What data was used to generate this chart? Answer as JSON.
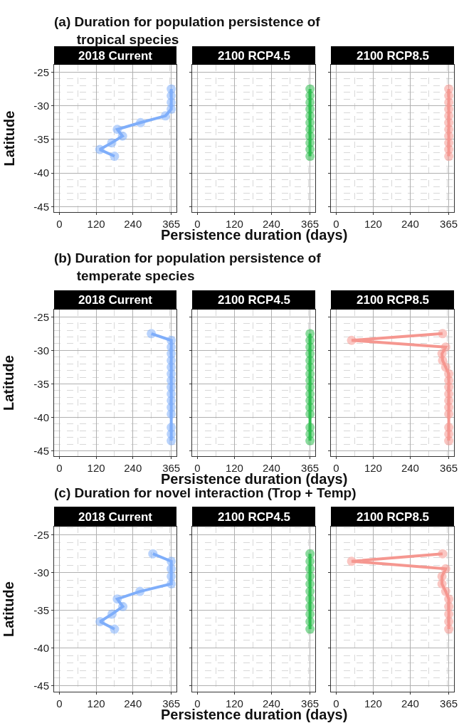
{
  "chart_data": [
    {
      "type": "line",
      "title": "(a) Duration for population persistence of tropical species",
      "subtitle": "2018 Current",
      "ylabel": "Latitude",
      "xlim": [
        -17,
        382
      ],
      "ylim": [
        -45.8,
        -23.9
      ],
      "xticks": [
        0,
        120,
        240,
        365
      ],
      "yticks": [
        -25,
        -30,
        -35,
        -40,
        -45
      ],
      "grid": true,
      "marker": "circle",
      "series": [
        {
          "color": "#7faefa",
          "x": [
            365,
            365,
            365,
            365,
            346,
            265,
            189,
            206,
            171,
            132,
            180
          ],
          "values": [
            -27.5,
            -28.5,
            -29.5,
            -30.5,
            -31.5,
            -32.5,
            -33.5,
            -34.5,
            -35.5,
            -36.5,
            -37.5
          ]
        }
      ]
    },
    {
      "type": "line",
      "subtitle": "2100 RCP4.5",
      "xlabel": "Persistence duration (days)",
      "xlim": [
        -17,
        382
      ],
      "ylim": [
        -45.8,
        -23.9
      ],
      "xticks": [
        0,
        120,
        240,
        365
      ],
      "yticks": [
        -25,
        -30,
        -35,
        -40,
        -45
      ],
      "tick_labels": "x",
      "grid": true,
      "marker": "circle",
      "series": [
        {
          "color": "#2fbe50",
          "x": [
            365,
            365,
            365,
            365,
            365,
            365,
            365,
            365,
            365,
            365,
            365
          ],
          "values": [
            -27.5,
            -28.5,
            -29.5,
            -30.5,
            -31.5,
            -32.5,
            -33.5,
            -34.5,
            -35.5,
            -36.5,
            -37.5
          ]
        }
      ]
    },
    {
      "type": "line",
      "subtitle": "2100 RCP8.5",
      "xlim": [
        -17,
        382
      ],
      "ylim": [
        -45.8,
        -23.9
      ],
      "xticks": [
        0,
        120,
        240,
        365
      ],
      "yticks": [
        -25,
        -30,
        -35,
        -40,
        -45
      ],
      "tick_labels": "x",
      "grid": true,
      "marker": "circle",
      "series": [
        {
          "color": "#f59790",
          "x": [
            365,
            365,
            365,
            365,
            365,
            365,
            365,
            365,
            365,
            365,
            365
          ],
          "values": [
            -27.5,
            -28.5,
            -29.5,
            -30.5,
            -31.5,
            -32.5,
            -33.5,
            -34.5,
            -35.5,
            -36.5,
            -37.5
          ]
        }
      ]
    },
    {
      "type": "line",
      "title": "(b) Duration for population persistence of temperate species",
      "subtitle": "2018 Current",
      "ylabel": "Latitude",
      "xlim": [
        -17,
        382
      ],
      "ylim": [
        -45.8,
        -23.9
      ],
      "xticks": [
        0,
        120,
        240,
        365
      ],
      "yticks": [
        -25,
        -30,
        -35,
        -40,
        -45
      ],
      "grid": true,
      "marker": "circle",
      "series": [
        {
          "color": "#7faefa",
          "x": [
            300,
            365,
            365,
            365,
            365,
            365,
            365,
            365,
            365,
            365,
            365,
            365,
            365,
            365,
            365,
            365
          ],
          "values": [
            -27.5,
            -28.5,
            -29.5,
            -30.5,
            -31.5,
            -32.5,
            -33.5,
            -34.5,
            -35.5,
            -36.5,
            -37.5,
            -38.5,
            -39.5,
            -41.5,
            -42.5,
            -43.5
          ]
        }
      ]
    },
    {
      "type": "line",
      "subtitle": "2100 RCP4.5",
      "xlabel": "Persistence duration (days)",
      "xlim": [
        -17,
        382
      ],
      "ylim": [
        -45.8,
        -23.9
      ],
      "xticks": [
        0,
        120,
        240,
        365
      ],
      "yticks": [
        -25,
        -30,
        -35,
        -40,
        -45
      ],
      "tick_labels": "x",
      "grid": true,
      "marker": "circle",
      "series": [
        {
          "color": "#2fbe50",
          "x": [
            365,
            365,
            365,
            365,
            365,
            365,
            365,
            365,
            365,
            365,
            365,
            365,
            365,
            365,
            365,
            365
          ],
          "values": [
            -27.5,
            -28.5,
            -29.5,
            -30.5,
            -31.5,
            -32.5,
            -33.5,
            -34.5,
            -35.5,
            -36.5,
            -37.5,
            -38.5,
            -39.5,
            -41.5,
            -42.5,
            -43.5
          ]
        }
      ]
    },
    {
      "type": "line",
      "subtitle": "2100 RCP8.5",
      "xlim": [
        -17,
        382
      ],
      "ylim": [
        -45.8,
        -23.9
      ],
      "xticks": [
        0,
        120,
        240,
        365
      ],
      "yticks": [
        -25,
        -30,
        -35,
        -40,
        -45
      ],
      "tick_labels": "x",
      "grid": true,
      "marker": "circle",
      "series": [
        {
          "color": "#f59790",
          "x": [
            345,
            50,
            355,
            343,
            345,
            355,
            365,
            365,
            365,
            365,
            365,
            365,
            365,
            365,
            365,
            365
          ],
          "values": [
            -27.5,
            -28.5,
            -29.5,
            -30.5,
            -31.5,
            -32.5,
            -33.5,
            -34.5,
            -35.5,
            -36.5,
            -37.5,
            -38.5,
            -39.5,
            -41.5,
            -42.5,
            -43.5
          ]
        }
      ]
    },
    {
      "type": "line",
      "title": "(c) Duration for novel interaction (Trop + Temp)",
      "subtitle": "2018 Current",
      "ylabel": "Latitude",
      "xlim": [
        -17,
        382
      ],
      "ylim": [
        -45.8,
        -23.9
      ],
      "xticks": [
        0,
        120,
        240,
        365
      ],
      "yticks": [
        -25,
        -30,
        -35,
        -40,
        -45
      ],
      "grid": true,
      "marker": "circle",
      "series": [
        {
          "color": "#7faefa",
          "x": [
            305,
            365,
            365,
            365,
            365,
            263,
            189,
            207,
            172,
            133,
            180
          ],
          "values": [
            -27.5,
            -28.5,
            -29.5,
            -30.5,
            -31.5,
            -32.5,
            -33.5,
            -34.5,
            -35.5,
            -36.5,
            -37.5
          ]
        }
      ]
    },
    {
      "type": "line",
      "subtitle": "2100 RCP4.5",
      "xlabel": "Persistence duration (days)",
      "xlim": [
        -17,
        382
      ],
      "ylim": [
        -45.8,
        -23.9
      ],
      "xticks": [
        0,
        120,
        240,
        365
      ],
      "yticks": [
        -25,
        -30,
        -35,
        -40,
        -45
      ],
      "tick_labels": "x",
      "grid": true,
      "marker": "circle",
      "series": [
        {
          "color": "#2fbe50",
          "x": [
            365,
            365,
            365,
            365,
            365,
            365,
            365,
            365,
            365,
            365,
            365
          ],
          "values": [
            -27.5,
            -28.5,
            -29.5,
            -30.5,
            -31.5,
            -32.5,
            -33.5,
            -34.5,
            -35.5,
            -36.5,
            -37.5
          ]
        }
      ]
    },
    {
      "type": "line",
      "subtitle": "2100 RCP8.5",
      "xlim": [
        -17,
        382
      ],
      "ylim": [
        -45.8,
        -23.9
      ],
      "xticks": [
        0,
        120,
        240,
        365
      ],
      "yticks": [
        -25,
        -30,
        -35,
        -40,
        -45
      ],
      "tick_labels": "x",
      "grid": true,
      "marker": "circle",
      "series": [
        {
          "color": "#f59790",
          "x": [
            345,
            50,
            355,
            343,
            343,
            355,
            365,
            365,
            365,
            365,
            365
          ],
          "values": [
            -27.5,
            -28.5,
            -29.5,
            -30.5,
            -31.5,
            -32.5,
            -33.5,
            -34.5,
            -35.5,
            -36.5,
            -37.5
          ]
        }
      ]
    }
  ]
}
